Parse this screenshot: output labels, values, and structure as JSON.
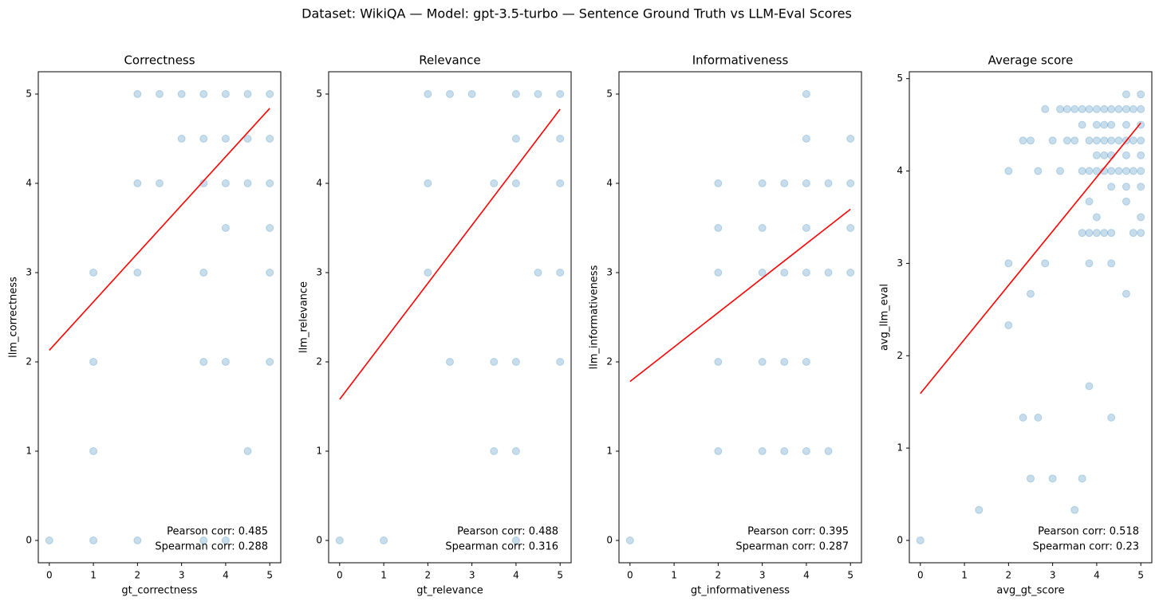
{
  "suptitle": "Dataset: WikiQA — Model: gpt-3.5-turbo — Sentence Ground Truth vs LLM-Eval Scores",
  "chart_data": [
    {
      "type": "scatter",
      "title": "Correctness",
      "xlabel": "gt_correctness",
      "ylabel": "llm_correctness",
      "x": [
        2,
        2.5,
        3,
        3.5,
        4,
        4.5,
        5,
        3,
        3.5,
        4,
        4.5,
        5,
        2,
        2.5,
        3.5,
        4,
        4.5,
        5,
        4,
        5,
        1,
        2,
        3.5,
        5,
        1,
        3.5,
        4,
        5,
        1,
        4.5,
        0,
        1,
        2,
        3.5,
        4
      ],
      "y": [
        5,
        5,
        5,
        5,
        5,
        5,
        5,
        4.5,
        4.5,
        4.5,
        4.5,
        4.5,
        4,
        4,
        4,
        4,
        4,
        4,
        3.5,
        3.5,
        3,
        3,
        3,
        3,
        2,
        2,
        2,
        2,
        1,
        1,
        0,
        0,
        0,
        0,
        0
      ],
      "color": "#1f77b4",
      "alpha": 0.25,
      "fit": {
        "x": [
          0,
          5
        ],
        "y": [
          2.13,
          4.84
        ],
        "color": "#ff0000"
      },
      "annotations": [
        "Pearson corr: 0.485",
        "Spearman corr: 0.288"
      ],
      "xlim": [
        -0.25,
        5.25
      ],
      "ylim": [
        -0.25,
        5.25
      ],
      "xticks": [
        0,
        1,
        2,
        3,
        4,
        5
      ],
      "yticks": [
        0,
        1,
        2,
        3,
        4,
        5
      ]
    },
    {
      "type": "scatter",
      "title": "Relevance",
      "xlabel": "gt_relevance",
      "ylabel": "llm_relevance",
      "x": [
        2,
        2.5,
        3,
        4,
        4.5,
        5,
        4,
        5,
        2,
        3.5,
        4,
        5,
        2,
        4.5,
        5,
        2.5,
        3.5,
        4,
        5,
        3.5,
        4,
        0,
        1,
        4
      ],
      "y": [
        5,
        5,
        5,
        5,
        5,
        5,
        4.5,
        4.5,
        4,
        4,
        4,
        4,
        3,
        3,
        3,
        2,
        2,
        2,
        2,
        1,
        1,
        0,
        0,
        0
      ],
      "color": "#1f77b4",
      "alpha": 0.25,
      "fit": {
        "x": [
          0,
          5
        ],
        "y": [
          1.58,
          4.83
        ],
        "color": "#ff0000"
      },
      "annotations": [
        "Pearson corr: 0.488",
        "Spearman corr: 0.316"
      ],
      "xlim": [
        -0.25,
        5.25
      ],
      "ylim": [
        -0.25,
        5.25
      ],
      "xticks": [
        0,
        1,
        2,
        3,
        4,
        5
      ],
      "yticks": [
        0,
        1,
        2,
        3,
        4,
        5
      ]
    },
    {
      "type": "scatter",
      "title": "Informativeness",
      "xlabel": "gt_informativeness",
      "ylabel": "llm_informativeness",
      "x": [
        4,
        4,
        5,
        2,
        3,
        3.5,
        4,
        4.5,
        5,
        2,
        3,
        4,
        5,
        2,
        3,
        3.5,
        4,
        4.5,
        5,
        2,
        3,
        3.5,
        4,
        2,
        3,
        3.5,
        4,
        4.5,
        0
      ],
      "y": [
        5,
        4.5,
        4.5,
        4,
        4,
        4,
        4,
        4,
        4,
        3.5,
        3.5,
        3.5,
        3.5,
        3,
        3,
        3,
        3,
        3,
        3,
        2,
        2,
        2,
        2,
        1,
        1,
        1,
        1,
        1,
        0
      ],
      "color": "#1f77b4",
      "alpha": 0.25,
      "fit": {
        "x": [
          0,
          5
        ],
        "y": [
          1.78,
          3.71
        ],
        "color": "#ff0000"
      },
      "annotations": [
        "Pearson corr: 0.395",
        "Spearman corr: 0.287"
      ],
      "xlim": [
        -0.25,
        5.25
      ],
      "ylim": [
        -0.25,
        5.25
      ],
      "xticks": [
        0,
        1,
        2,
        3,
        4,
        5
      ],
      "yticks": [
        0,
        1,
        2,
        3,
        4,
        5
      ]
    },
    {
      "type": "scatter",
      "title": "Average score",
      "xlabel": "avg_gt_score",
      "ylabel": "avg_llm_eval",
      "x": [
        4.67,
        5,
        2.83,
        3.17,
        3.33,
        3.5,
        3.67,
        3.83,
        4,
        4.17,
        4.33,
        4.5,
        4.67,
        4.83,
        5,
        3.67,
        4,
        4.17,
        4.33,
        4.67,
        5,
        2.33,
        2.5,
        3,
        3.33,
        3.5,
        3.83,
        4,
        4.17,
        4.33,
        4.5,
        4.67,
        4.83,
        5,
        4,
        4.17,
        4.33,
        4.67,
        5,
        2,
        2.67,
        3.17,
        3.67,
        3.83,
        4,
        4.17,
        4.33,
        4.5,
        4.67,
        4.83,
        5,
        4.33,
        4.67,
        5,
        3.83,
        4.67,
        4,
        5,
        3.67,
        3.83,
        4,
        4.17,
        4.33,
        4.83,
        5,
        2,
        2.83,
        3.83,
        4.33,
        2.5,
        4.67,
        2,
        3.83,
        2.33,
        2.67,
        4.33,
        2.5,
        3,
        3.67,
        1.33,
        3.5,
        0
      ],
      "y": [
        4.83,
        4.83,
        4.67,
        4.67,
        4.67,
        4.67,
        4.67,
        4.67,
        4.67,
        4.67,
        4.67,
        4.67,
        4.67,
        4.67,
        4.67,
        4.5,
        4.5,
        4.5,
        4.5,
        4.5,
        4.5,
        4.33,
        4.33,
        4.33,
        4.33,
        4.33,
        4.33,
        4.33,
        4.33,
        4.33,
        4.33,
        4.33,
        4.33,
        4.33,
        4.17,
        4.17,
        4.17,
        4.17,
        4.17,
        4,
        4,
        4,
        4,
        4,
        4,
        4,
        4,
        4,
        4,
        4,
        4,
        3.83,
        3.83,
        3.83,
        3.67,
        3.67,
        3.5,
        3.5,
        3.33,
        3.33,
        3.33,
        3.33,
        3.33,
        3.33,
        3.33,
        3,
        3,
        3,
        3,
        2.67,
        2.67,
        2.33,
        1.67,
        1.33,
        1.33,
        1.33,
        0.67,
        0.67,
        0.67,
        0.33,
        0.33,
        0
      ],
      "color": "#1f77b4",
      "alpha": 0.25,
      "fit": {
        "x": [
          0,
          5
        ],
        "y": [
          1.59,
          4.52
        ],
        "color": "#ff0000"
      },
      "annotations": [
        "Pearson corr: 0.518",
        "Spearman corr: 0.23"
      ],
      "xlim": [
        -0.25,
        5.25
      ],
      "ylim": [
        -0.242,
        5.075
      ],
      "xticks": [
        0,
        1,
        2,
        3,
        4,
        5
      ],
      "yticks": [
        0,
        1,
        2,
        3,
        4,
        5
      ]
    }
  ]
}
